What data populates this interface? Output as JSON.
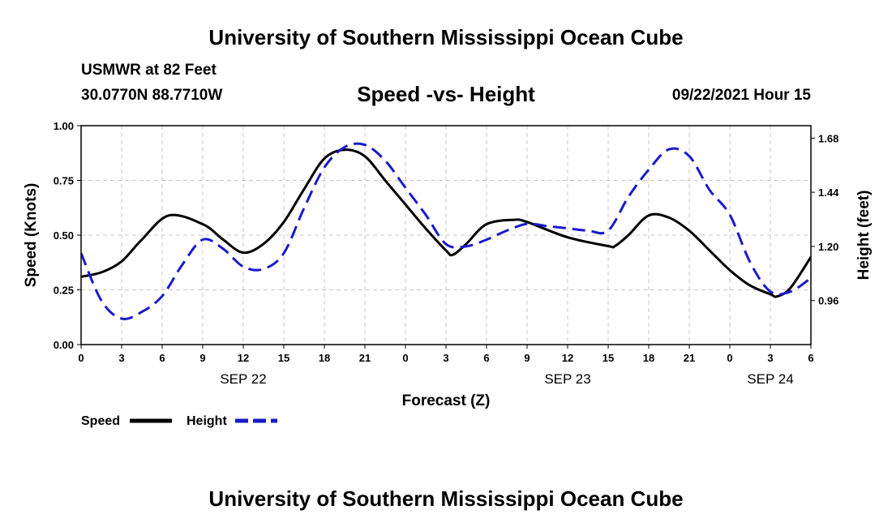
{
  "header": {
    "title": "University of Southern Mississippi Ocean Cube",
    "station": "USMWR at 82 Feet",
    "coords": "30.0770N  88.7710W",
    "subtitle": "Speed -vs- Height",
    "run_time": "09/22/2021 Hour 15"
  },
  "footer": {
    "title": "University of Southern Mississippi Ocean Cube"
  },
  "colors": {
    "speed": "#000000",
    "height": "#1a1acc",
    "grid": "#c8c8c8"
  },
  "chart_data": {
    "type": "line",
    "title": "Speed -vs- Height",
    "xlabel": "Forecast (Z)",
    "ylabel_left": "Speed (Knots)",
    "ylabel_right": "Height (feet)",
    "x_range_hours": [
      0,
      54
    ],
    "x_tick_labels": [
      "0",
      "3",
      "6",
      "9",
      "12",
      "15",
      "18",
      "21",
      "0",
      "3",
      "6",
      "9",
      "12",
      "15",
      "18",
      "21",
      "0",
      "3",
      "6"
    ],
    "date_labels": [
      {
        "label": "SEP 22",
        "hour": 12
      },
      {
        "label": "SEP 23",
        "hour": 36
      },
      {
        "label": "SEP 24",
        "hour": 51
      }
    ],
    "y_left": {
      "min": 0,
      "max": 1,
      "ticks": [
        "0.00",
        "0.25",
        "0.50",
        "0.75",
        "1.00"
      ]
    },
    "y_right": {
      "min": 0.765,
      "max": 1.735,
      "ticks": [
        "0.96",
        "1.20",
        "1.44",
        "1.68"
      ]
    },
    "grid": true,
    "legend_position": "bottom-left",
    "series": [
      {
        "name": "Speed",
        "axis": "left",
        "style": "solid",
        "hours": [
          0,
          1.5,
          3,
          4.5,
          6.5,
          9,
          10.5,
          12,
          13.5,
          15,
          16.5,
          18,
          19.5,
          21,
          22.5,
          24,
          25.5,
          27,
          27.5,
          28.5,
          30,
          32,
          33,
          36,
          39,
          39.5,
          40.5,
          42,
          43.5,
          45,
          46.5,
          48,
          49.5,
          51,
          51.5,
          52.5,
          54
        ],
        "values": [
          0.31,
          0.33,
          0.38,
          0.48,
          0.59,
          0.55,
          0.48,
          0.42,
          0.46,
          0.56,
          0.71,
          0.85,
          0.89,
          0.86,
          0.75,
          0.64,
          0.53,
          0.43,
          0.41,
          0.46,
          0.55,
          0.57,
          0.56,
          0.49,
          0.45,
          0.45,
          0.5,
          0.59,
          0.58,
          0.52,
          0.43,
          0.34,
          0.27,
          0.23,
          0.22,
          0.26,
          0.4
        ]
      },
      {
        "name": "Height",
        "axis": "right",
        "style": "dashed",
        "hours": [
          0,
          1.5,
          3,
          4.5,
          6,
          7.5,
          9,
          10.5,
          12,
          13.5,
          15,
          16.5,
          18,
          19.5,
          21,
          22.5,
          24,
          25.5,
          27,
          28.5,
          30,
          31.5,
          33,
          34.5,
          36,
          37.5,
          39,
          40.5,
          42,
          43.5,
          45,
          46.5,
          48,
          49.5,
          51,
          52.5,
          54
        ],
        "values": [
          1.17,
          0.96,
          0.88,
          0.91,
          0.98,
          1.12,
          1.23,
          1.19,
          1.11,
          1.1,
          1.17,
          1.37,
          1.55,
          1.64,
          1.65,
          1.58,
          1.46,
          1.34,
          1.21,
          1.2,
          1.23,
          1.27,
          1.3,
          1.29,
          1.28,
          1.27,
          1.27,
          1.42,
          1.54,
          1.63,
          1.6,
          1.45,
          1.34,
          1.13,
          1.0,
          1.0,
          1.06
        ]
      }
    ],
    "legend": [
      {
        "label": "Speed",
        "series": "Speed"
      },
      {
        "label": "Height",
        "series": "Height"
      }
    ]
  }
}
